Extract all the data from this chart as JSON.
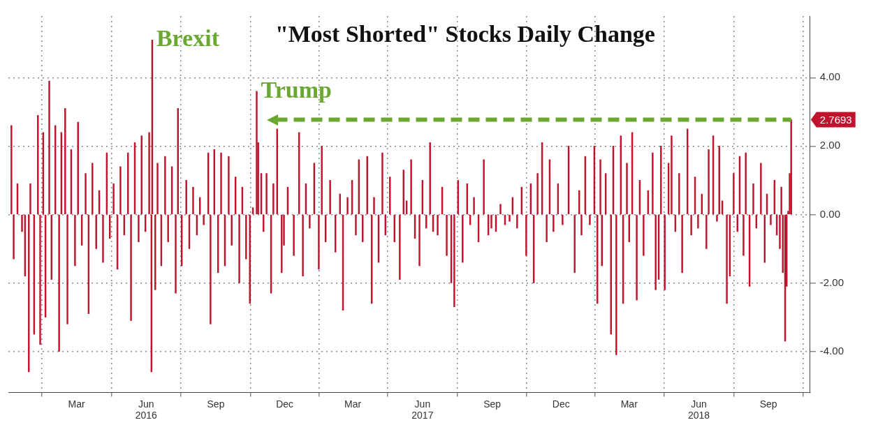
{
  "chart_data": {
    "type": "bar",
    "title": "\"Most Shorted\" Stocks Daily Change",
    "color": "#c0142e",
    "x": [
      "2015-12-21",
      "2015-12-24",
      "2015-12-29",
      "2016-01-04",
      "2016-01-08",
      "2016-01-13",
      "2016-01-15",
      "2016-01-20",
      "2016-01-25",
      "2016-01-28",
      "2016-02-01",
      "2016-02-04",
      "2016-02-09",
      "2016-02-12",
      "2016-02-17",
      "2016-02-22",
      "2016-02-25",
      "2016-03-01",
      "2016-03-04",
      "2016-03-09",
      "2016-03-14",
      "2016-03-18",
      "2016-03-23",
      "2016-03-28",
      "2016-04-01",
      "2016-04-06",
      "2016-04-11",
      "2016-04-15",
      "2016-04-20",
      "2016-04-25",
      "2016-04-29",
      "2016-05-04",
      "2016-05-09",
      "2016-05-13",
      "2016-05-18",
      "2016-05-23",
      "2016-05-27",
      "2016-06-01",
      "2016-06-06",
      "2016-06-10",
      "2016-06-15",
      "2016-06-20",
      "2016-06-23",
      "2016-06-24",
      "2016-06-28",
      "2016-07-01",
      "2016-07-06",
      "2016-07-11",
      "2016-07-15",
      "2016-07-20",
      "2016-07-25",
      "2016-07-28",
      "2016-08-02",
      "2016-08-08",
      "2016-08-12",
      "2016-08-17",
      "2016-08-22",
      "2016-08-26",
      "2016-08-31",
      "2016-09-06",
      "2016-09-09",
      "2016-09-14",
      "2016-09-19",
      "2016-09-23",
      "2016-09-28",
      "2016-10-03",
      "2016-10-07",
      "2016-10-12",
      "2016-10-17",
      "2016-10-21",
      "2016-10-26",
      "2016-10-31",
      "2016-11-04",
      "2016-11-09",
      "2016-11-11",
      "2016-11-15",
      "2016-11-18",
      "2016-11-22",
      "2016-11-28",
      "2016-12-01",
      "2016-12-06",
      "2016-12-12",
      "2016-12-15",
      "2016-12-20",
      "2016-12-28",
      "2017-01-04",
      "2017-01-09",
      "2017-01-13",
      "2017-01-18",
      "2017-01-24",
      "2017-01-30",
      "2017-02-03",
      "2017-02-08",
      "2017-02-14",
      "2017-02-21",
      "2017-02-27",
      "2017-03-03",
      "2017-03-09",
      "2017-03-15",
      "2017-03-20",
      "2017-03-24",
      "2017-03-29",
      "2017-04-04",
      "2017-04-10",
      "2017-04-13",
      "2017-04-19",
      "2017-04-24",
      "2017-04-28",
      "2017-05-04",
      "2017-05-10",
      "2017-05-17",
      "2017-05-22",
      "2017-05-26",
      "2017-06-01",
      "2017-06-06",
      "2017-06-12",
      "2017-06-16",
      "2017-06-21",
      "2017-06-26",
      "2017-06-30",
      "2017-07-06",
      "2017-07-12",
      "2017-07-18",
      "2017-07-24",
      "2017-07-28",
      "2017-08-02",
      "2017-08-08",
      "2017-08-14",
      "2017-08-18",
      "2017-08-23",
      "2017-08-29",
      "2017-09-05",
      "2017-09-11",
      "2017-09-15",
      "2017-09-21",
      "2017-09-27",
      "2017-10-03",
      "2017-10-09",
      "2017-10-13",
      "2017-10-19",
      "2017-10-25",
      "2017-10-31",
      "2017-11-06",
      "2017-11-10",
      "2017-11-15",
      "2017-11-21",
      "2017-11-27",
      "2017-12-01",
      "2017-12-06",
      "2017-12-12",
      "2017-12-18",
      "2017-12-26",
      "2018-01-03",
      "2018-01-09",
      "2018-01-12",
      "2018-01-17",
      "2018-01-23",
      "2018-01-29",
      "2018-02-02",
      "2018-02-06",
      "2018-02-08",
      "2018-02-13",
      "2018-02-20",
      "2018-02-23",
      "2018-02-27",
      "2018-03-05",
      "2018-03-08",
      "2018-03-13",
      "2018-03-16",
      "2018-03-20",
      "2018-03-26",
      "2018-03-30",
      "2018-04-04",
      "2018-04-10",
      "2018-04-16",
      "2018-04-20",
      "2018-04-24",
      "2018-04-27",
      "2018-05-02",
      "2018-05-07",
      "2018-05-11",
      "2018-05-16",
      "2018-05-21",
      "2018-05-25",
      "2018-06-01",
      "2018-06-06",
      "2018-06-11",
      "2018-06-15",
      "2018-06-20",
      "2018-06-26",
      "2018-06-29",
      "2018-07-05",
      "2018-07-10",
      "2018-07-13",
      "2018-07-17",
      "2018-07-23",
      "2018-07-27",
      "2018-08-01",
      "2018-08-06",
      "2018-08-09",
      "2018-08-14",
      "2018-08-17",
      "2018-08-22",
      "2018-08-27",
      "2018-08-31",
      "2018-09-06",
      "2018-09-11",
      "2018-09-14",
      "2018-09-19",
      "2018-09-24",
      "2018-09-27",
      "2018-10-01",
      "2018-10-03",
      "2018-10-05",
      "2018-10-08",
      "2018-10-10",
      "2018-10-12",
      "2018-10-14",
      "2018-10-16"
    ],
    "values": [
      2.6,
      -1.3,
      0.9,
      -0.5,
      -1.8,
      -4.6,
      0.9,
      -3.5,
      2.9,
      -3.8,
      2.4,
      -3.0,
      3.9,
      -1.9,
      2.6,
      -4.0,
      2.4,
      3.1,
      -3.2,
      1.9,
      -1.5,
      2.7,
      -0.9,
      1.2,
      -2.9,
      1.5,
      -1.0,
      0.7,
      -1.4,
      1.8,
      -0.7,
      0.9,
      -1.6,
      1.4,
      -0.6,
      1.8,
      -3.1,
      2.1,
      -0.8,
      2.3,
      -0.5,
      2.4,
      -4.6,
      5.1,
      -2.2,
      1.5,
      -1.5,
      1.7,
      -0.8,
      1.4,
      -2.3,
      3.1,
      -1.5,
      1.0,
      -1.0,
      0.8,
      -0.6,
      0.5,
      -0.3,
      1.8,
      -3.2,
      1.9,
      -1.7,
      1.8,
      -1.5,
      1.7,
      -0.9,
      1.1,
      -2.0,
      0.8,
      -1.3,
      -2.6,
      0.2,
      3.6,
      2.1,
      1.2,
      -0.5,
      1.2,
      -2.3,
      0.9,
      2.5,
      -1.7,
      -0.9,
      0.8,
      -1.2,
      2.4,
      -1.8,
      0.9,
      -0.4,
      1.5,
      -1.6,
      2.0,
      -0.8,
      1.0,
      -1.1,
      0.6,
      -2.8,
      0.5,
      1.0,
      -0.6,
      1.6,
      -0.8,
      1.7,
      -2.6,
      0.5,
      -1.4,
      1.8,
      -0.6,
      1.1,
      -0.8,
      -1.9,
      1.3,
      0.4,
      1.6,
      -0.7,
      -1.5,
      1.0,
      -0.4,
      2.1,
      -0.5,
      -0.6,
      0.8,
      -1.2,
      -2.0,
      -2.7,
      1.0,
      -1.4,
      0.9,
      -0.3,
      0.5,
      -0.8,
      1.6,
      -0.6,
      -0.4,
      -0.5,
      0.3,
      -0.3,
      -0.2,
      0.5,
      -0.4,
      0.8,
      -1.2,
      0.9,
      -2.0,
      1.2,
      2.1,
      -0.8,
      1.6,
      -0.5,
      0.9,
      -0.3,
      2.0,
      -1.7,
      0.7,
      -0.6,
      1.7,
      -0.3,
      2.0,
      -2.6,
      1.6,
      -1.5,
      1.2,
      -3.5,
      2.0,
      -4.1,
      2.3,
      -2.6,
      1.5,
      -0.8,
      2.4,
      -2.5,
      1.0,
      -1.2,
      0.7,
      1.8,
      -2.2,
      -1.9,
      2.0,
      -2.2,
      1.5,
      2.3,
      -0.5,
      1.2,
      -1.7,
      2.5,
      -0.6,
      1.1,
      -0.4,
      0.6,
      -1.0,
      1.9,
      2.3,
      -0.2,
      2.0,
      0.4,
      -2.6,
      -1.8,
      1.2,
      -0.5,
      1.7,
      -1.2,
      1.8,
      -2.1,
      0.9,
      -0.4,
      1.5,
      -1.4,
      0.6,
      -0.3,
      1.0,
      -0.6,
      -1.0,
      0.8,
      -1.7,
      -3.7,
      -2.1,
      0.1,
      1.2,
      2.7693
    ],
    "ref_lines": [
      {
        "axis": "y",
        "value": 2.7693,
        "label": "2.7693",
        "color": "#6aa832",
        "line_style": "dashed"
      }
    ],
    "xlim": [
      "2015-12-17",
      "2018-11-10"
    ],
    "xticks": [
      {
        "value": "2016-03-16",
        "label": "Mar"
      },
      {
        "value": "2016-06-16",
        "label": "Jun\n2016"
      },
      {
        "value": "2016-09-16",
        "label": "Sep"
      },
      {
        "value": "2016-12-16",
        "label": "Dec"
      },
      {
        "value": "2017-03-16",
        "label": "Mar"
      },
      {
        "value": "2017-06-16",
        "label": "Jun\n2017"
      },
      {
        "value": "2017-09-16",
        "label": "Sep"
      },
      {
        "value": "2017-12-16",
        "label": "Dec"
      },
      {
        "value": "2018-03-16",
        "label": "Mar"
      },
      {
        "value": "2018-06-16",
        "label": "Jun\n2018"
      },
      {
        "value": "2018-09-16",
        "label": "Sep"
      }
    ],
    "ylim": [
      -5.2,
      5.8
    ],
    "yticks": [
      {
        "value": -4,
        "label": "-4.00"
      },
      {
        "value": -2,
        "label": "-2.00"
      },
      {
        "value": 0,
        "label": "0.00"
      },
      {
        "value": 2,
        "label": "2.00"
      },
      {
        "value": 4,
        "label": "4.00"
      }
    ],
    "grid": true,
    "annotations": [
      {
        "text": "Brexit",
        "x": "2016-06-24",
        "y": 5.1
      },
      {
        "text": "Trump",
        "x": "2016-11-09",
        "y": 3.6
      }
    ]
  }
}
